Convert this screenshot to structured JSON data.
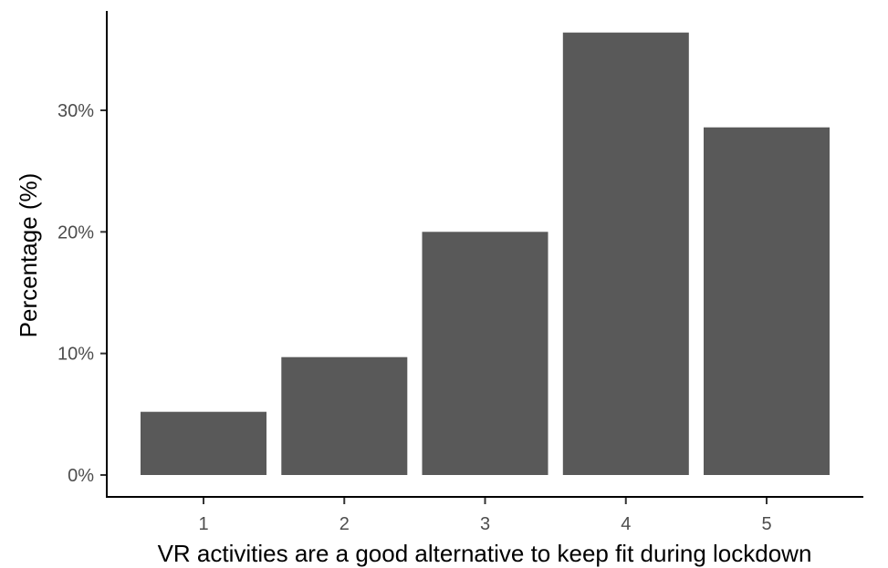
{
  "chart_data": {
    "type": "bar",
    "categories": [
      "1",
      "2",
      "3",
      "4",
      "5"
    ],
    "values": [
      5.2,
      9.7,
      20.0,
      36.4,
      28.6
    ],
    "xlabel": "VR activities are a good alternative to keep fit during lockdown",
    "ylabel": "Percentage (%)",
    "ylim": [
      0,
      38
    ],
    "yticks": [
      0,
      10,
      20,
      30
    ],
    "ytick_labels": [
      "0%",
      "10%",
      "20%",
      "30%"
    ],
    "bar_color": "#595959",
    "grid": false,
    "legend": "none"
  }
}
